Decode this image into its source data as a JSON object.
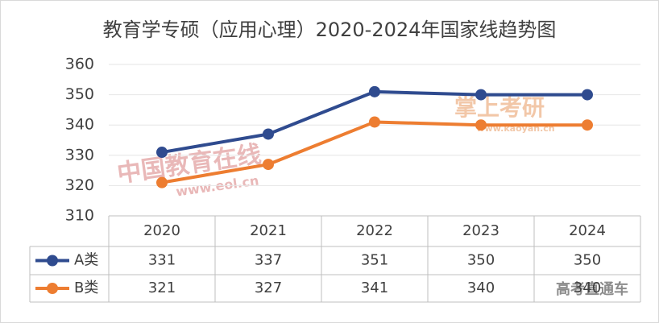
{
  "chart_data": {
    "type": "line",
    "title": "教育学专硕（应用心理）2020-2024年国家线趋势图",
    "categories": [
      "2020",
      "2021",
      "2022",
      "2023",
      "2024"
    ],
    "series": [
      {
        "name": "A类",
        "color": "#2f4b8f",
        "values": [
          331,
          337,
          351,
          350,
          350
        ]
      },
      {
        "name": "B类",
        "color": "#ed7d31",
        "values": [
          321,
          327,
          341,
          340,
          340
        ]
      }
    ],
    "ylim": [
      310,
      360
    ],
    "yticks": [
      310,
      320,
      330,
      340,
      350,
      360
    ],
    "grid": true,
    "data_table": true
  },
  "watermarks": [
    "中国教育在线",
    "www.eol.cn",
    "掌上考研",
    "www.kaoyan.cn",
    "高考直通车"
  ]
}
